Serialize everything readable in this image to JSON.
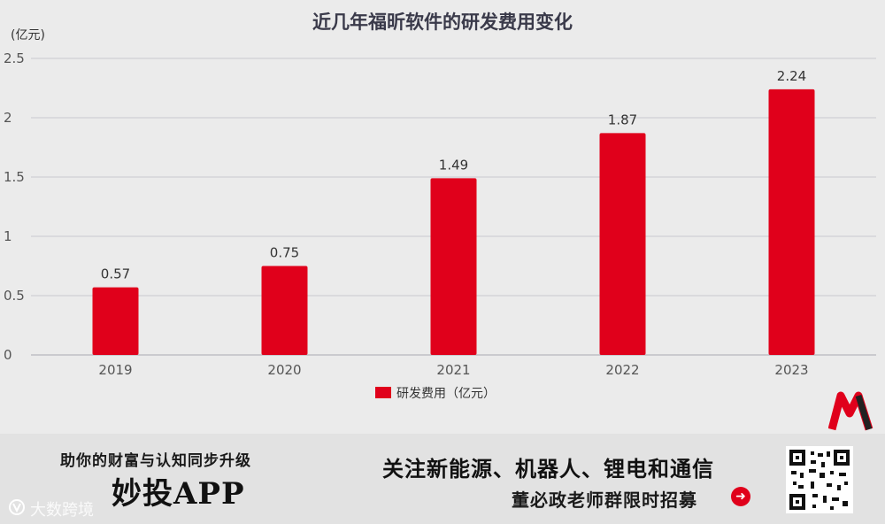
{
  "chart_data": {
    "type": "bar",
    "title": "近几年福昕软件的研发费用变化",
    "unit_label": "(亿元)",
    "categories": [
      "2019",
      "2020",
      "2021",
      "2022",
      "2023"
    ],
    "series": [
      {
        "name": "研发费用（亿元）",
        "values": [
          0.57,
          0.75,
          1.49,
          1.87,
          2.24
        ],
        "color": "#e0001b"
      }
    ],
    "data_labels": [
      "0.57",
      "0.75",
      "1.49",
      "1.87",
      "2.24"
    ],
    "ylim": [
      0,
      2.5
    ],
    "y_ticks": [
      "0",
      "0.5",
      "1",
      "1.5",
      "2",
      "2.5"
    ],
    "grid": true,
    "legend_position": "bottom-center"
  },
  "banner": {
    "tagline": "助你的财富与认知同步升级",
    "app_name": "妙投APP",
    "follow_text": "关注新能源、机器人、锂电和通信",
    "recruit_text": "董必政老师群限时招募",
    "arrow": "➜",
    "watermark": "大数跨境"
  },
  "colors": {
    "bar": "#e0001b",
    "grid": "#c8c8cf",
    "axis_text": "#555555",
    "title": "#3a3a4a"
  }
}
